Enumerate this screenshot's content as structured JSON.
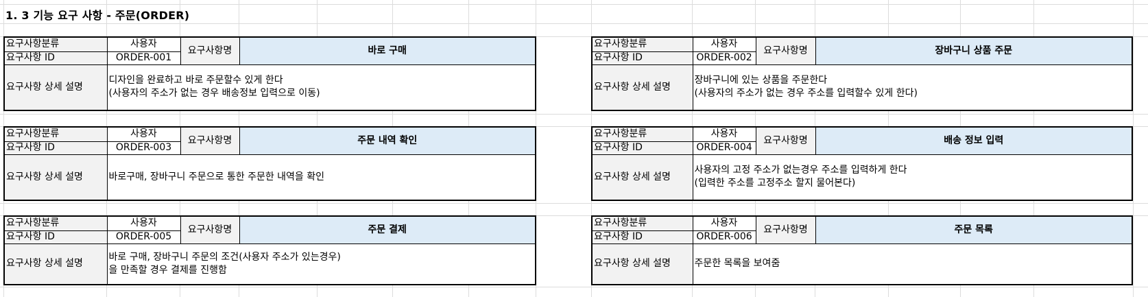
{
  "sheet_title": "1. 3 기능 요구 사항 - 주문(ORDER)",
  "labels": {
    "category": "요구사항분류",
    "req_id": "요구사항 ID",
    "req_name": "요구사항명",
    "detail": "요구사항 상세 설명"
  },
  "requirements": [
    {
      "category_value": "사용자",
      "id": "ORDER-001",
      "name": "바로 구매",
      "desc1": "디자인을 완료하고 바로 주문할수 있게 한다",
      "desc2": "(사용자의 주소가 없는 경우 배송정보 입력으로 이동)"
    },
    {
      "category_value": "사용자",
      "id": "ORDER-002",
      "name": "장바구니 상품 주문",
      "desc1": "장바구니에 있는 상품을 주문한다",
      "desc2": "(사용자의 주소가 없는 경우 주소를 입력할수 있게 한다)"
    },
    {
      "category_value": "사용자",
      "id": "ORDER-003",
      "name": "주문 내역 확인",
      "desc1": "바로구매, 장바구니 주문으로 통한 주문한 내역을 확인",
      "desc2": ""
    },
    {
      "category_value": "사용자",
      "id": "ORDER-004",
      "name": "배송 정보 입력",
      "desc1": "사용자의 고정 주소가 없는경우 주소를 입력하게 한다",
      "desc2": "(입력한 주소를 고정주소 할지 물어본다)"
    },
    {
      "category_value": "사용자",
      "id": "ORDER-005",
      "name": "주문 결제",
      "desc1": "바로 구매, 장바구니 주문의 조건(사용자 주소가 있는경우)",
      "desc2": "을 만족할 경우 결제를 진행함"
    },
    {
      "category_value": "사용자",
      "id": "ORDER-006",
      "name": "주문 목록",
      "desc1": "주문한 목록을 보여줌",
      "desc2": ""
    }
  ]
}
